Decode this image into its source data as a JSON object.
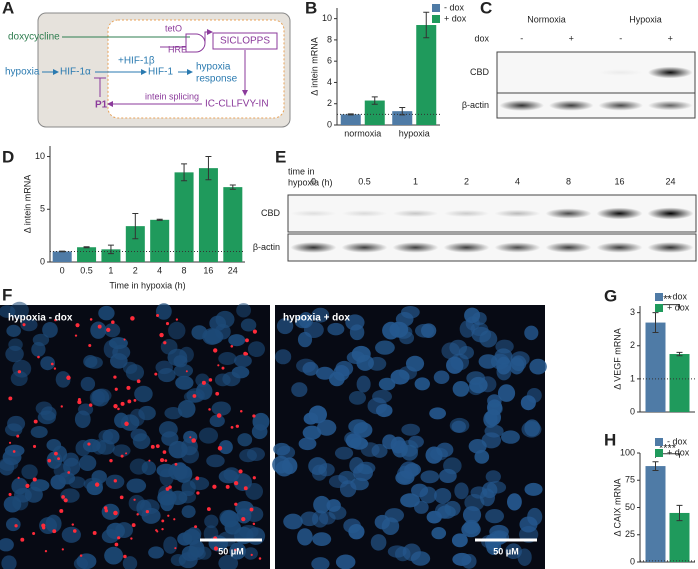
{
  "diagram": {
    "panel": "A",
    "doxycycline": "doxycycline",
    "teto": "tetO",
    "hre": "HRE",
    "siclopps": "SICLOPPS",
    "hypoxia": "hypoxia",
    "hif1a": "HIF-1α",
    "hif1b": "+HIF-1β",
    "hif1": "HIF-1",
    "response_lines": [
      "hypoxia",
      "response"
    ],
    "p1": "P1",
    "splicing": "intein splicing",
    "product": "IC-CLLFVY-IN"
  },
  "blot_c": {
    "panel": "C",
    "groups": [
      "Normoxia",
      "Hypoxia"
    ],
    "lane_title": "dox",
    "lanes": [
      "-",
      "+",
      "-",
      "+"
    ],
    "rows": [
      "CBD",
      "β-actin"
    ]
  },
  "blot_e": {
    "panel": "E",
    "lane_title_lines": [
      "time in",
      "hypoxia (h)"
    ],
    "lanes": [
      "0",
      "0.5",
      "1",
      "2",
      "4",
      "8",
      "16",
      "24"
    ],
    "rows": [
      "CBD",
      "β-actin"
    ]
  },
  "images": {
    "panel": "F",
    "left_label": "hypoxia - dox",
    "right_label": "hypoxia + dox",
    "scale_left": "50 μM",
    "scale_right": "50 μM"
  },
  "chart_data": [
    {
      "type": "bar",
      "panel": "B",
      "y_label": "Δ intein mRNA",
      "categories": [
        "normoxia",
        "hypoxia"
      ],
      "series": [
        {
          "name": "- dox",
          "color": "#4f7ba6",
          "values": [
            1,
            1.3
          ],
          "errors": [
            0.05,
            0.35
          ]
        },
        {
          "name": "+ dox",
          "color": "#1f9a5c",
          "values": [
            2.3,
            9.4
          ],
          "errors": [
            0.35,
            1.2
          ]
        }
      ],
      "ylim": [
        0,
        11
      ],
      "yticks": [
        0,
        2,
        4,
        6,
        8,
        10
      ],
      "reference_line": 1,
      "legend": "upper right"
    },
    {
      "type": "bar",
      "panel": "D",
      "y_label": "Δ intein mRNA",
      "x_label": "Time in hypoxia (h)",
      "categories": [
        "0",
        "0.5",
        "1",
        "2",
        "4",
        "8",
        "16",
        "24"
      ],
      "series": [
        {
          "values": [
            1,
            1.4,
            1.2,
            3.4,
            4.0,
            8.5,
            8.9,
            7.1
          ],
          "errors": [
            0.03,
            0.05,
            0.4,
            1.2,
            0.05,
            0.8,
            1.1,
            0.2
          ],
          "colors": [
            "#4f7ba6",
            "#1f9a5c",
            "#1f9a5c",
            "#1f9a5c",
            "#1f9a5c",
            "#1f9a5c",
            "#1f9a5c",
            "#1f9a5c"
          ]
        }
      ],
      "ylim": [
        0,
        11
      ],
      "yticks": [
        0,
        5,
        10
      ],
      "reference_line": 1
    },
    {
      "type": "bar",
      "panel": "G",
      "y_label": "Δ VEGF mRNA",
      "categories": [
        null
      ],
      "significance": "**",
      "series": [
        {
          "name": "- dox",
          "color": "#4f7ba6",
          "values": [
            2.7
          ],
          "errors": [
            0.3
          ]
        },
        {
          "name": "+ dox",
          "color": "#1f9a5c",
          "values": [
            1.75
          ],
          "errors": [
            0.05
          ]
        }
      ],
      "ylim": [
        0,
        3.2
      ],
      "yticks": [
        0,
        1,
        2,
        3
      ],
      "reference_line": 1,
      "legend": "upper right"
    },
    {
      "type": "bar",
      "panel": "H",
      "y_label": "Δ CAIX mRNA",
      "categories": [
        null
      ],
      "significance": "****",
      "series": [
        {
          "name": "- dox",
          "color": "#4f7ba6",
          "values": [
            88
          ],
          "errors": [
            4
          ]
        },
        {
          "name": "+ dox",
          "color": "#1f9a5c",
          "values": [
            45
          ],
          "errors": [
            7
          ]
        }
      ],
      "ylim": [
        0,
        100
      ],
      "yticks": [
        0,
        25,
        50,
        75,
        100
      ],
      "reference_line": 1,
      "legend": "upper right"
    }
  ]
}
